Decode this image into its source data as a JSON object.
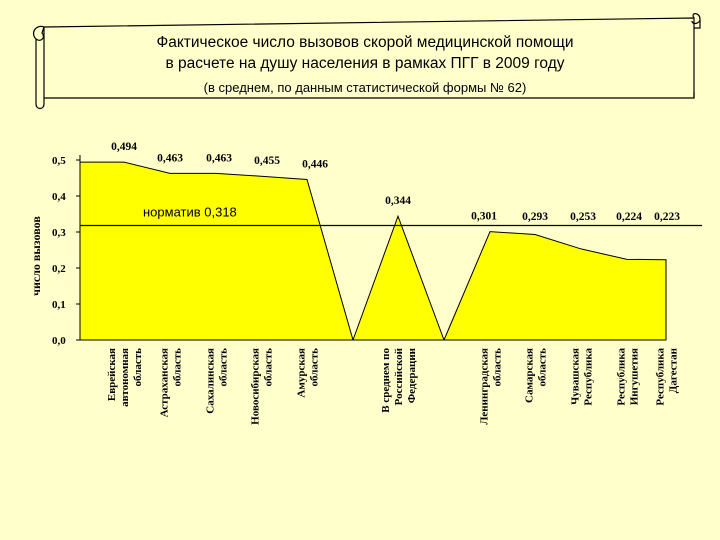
{
  "banner": {
    "title_line1": "Фактическое число вызовов скорой медицинской помощи",
    "title_line2": "в расчете на душу населения в рамках ПГГ в 2009 году",
    "subtitle": "(в среднем, по данным статистической формы № 62)"
  },
  "chart_data": {
    "type": "area",
    "ylabel": "число вызовов",
    "ylim": [
      0,
      0.5
    ],
    "yticks": [
      "0,0",
      "0,1",
      "0,2",
      "0,3",
      "0,4",
      "0,5"
    ],
    "grid": false,
    "fill_color": "#ffff00",
    "stroke_color": "#000000",
    "categories": [
      [
        "Еврейская",
        "автономная",
        "область"
      ],
      [
        "Астраханская",
        "область"
      ],
      [
        "Сахалинская",
        "область"
      ],
      [
        "Новосибирская",
        "область"
      ],
      [
        "Амурская",
        "область"
      ],
      [
        "В среднем по",
        "Российской",
        "Федерации"
      ],
      [
        "Ленинградская",
        "область"
      ],
      [
        "Самарская",
        "область"
      ],
      [
        "Чувашская",
        "Республика"
      ],
      [
        "Республика",
        "Ингушетия"
      ],
      [
        "Республика",
        "Дагестан"
      ]
    ],
    "segments": [
      [
        0,
        1,
        2,
        3,
        4
      ],
      [
        5
      ],
      [
        6,
        7,
        8,
        9,
        10
      ]
    ],
    "values": [
      0.494,
      0.463,
      0.463,
      0.455,
      0.446,
      0.344,
      0.301,
      0.293,
      0.253,
      0.224,
      0.223
    ],
    "value_labels": [
      "0,494",
      "0,463",
      "0,463",
      "0,455",
      "0,446",
      "0,344",
      "0,301",
      "0,293",
      "0,253",
      "0,224",
      "0,223"
    ],
    "reference_line": {
      "value": 0.318,
      "label": "норматив 0,318"
    }
  }
}
